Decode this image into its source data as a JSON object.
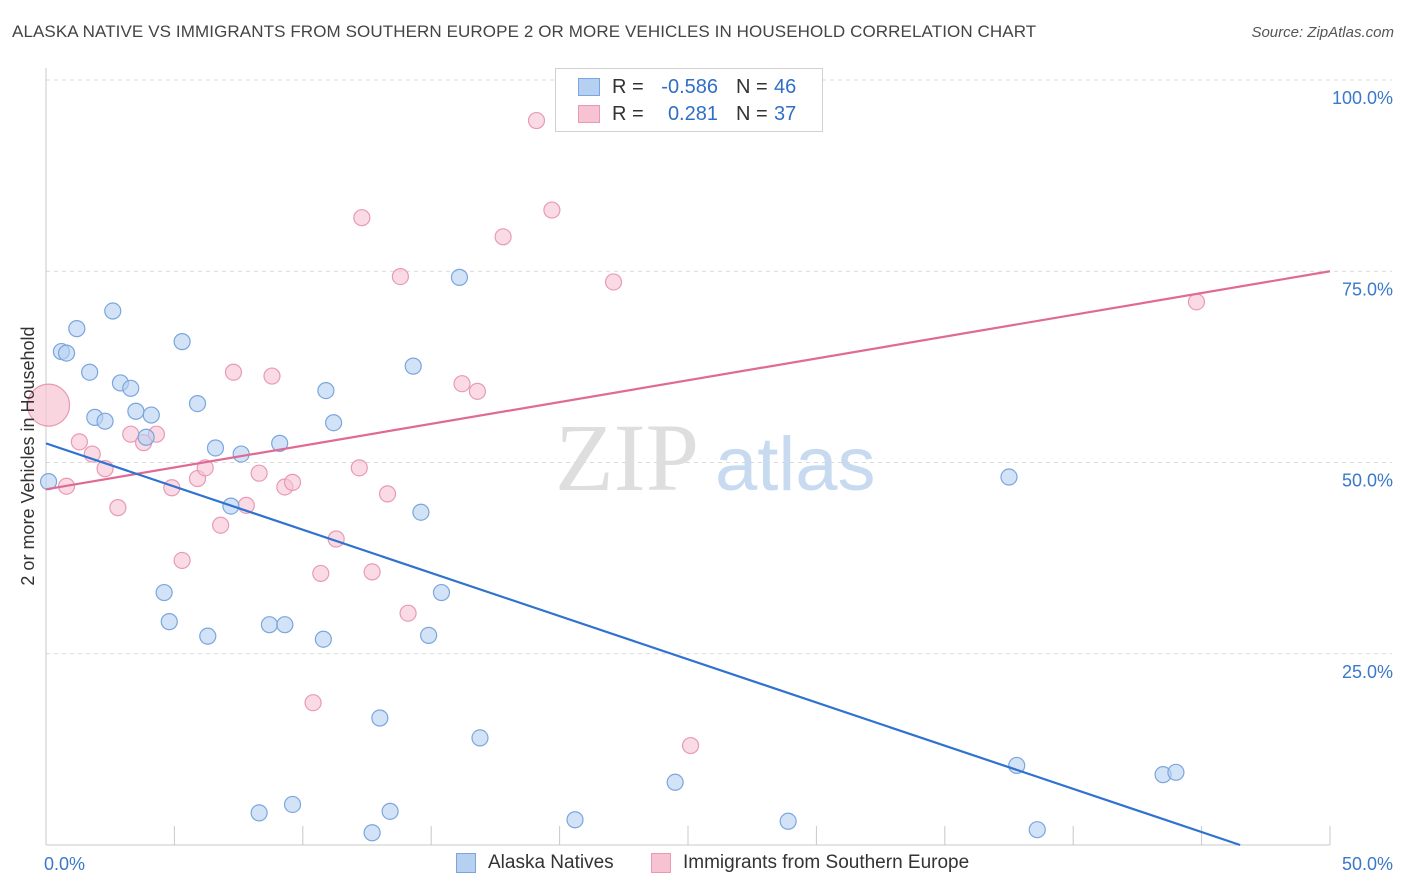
{
  "title": "ALASKA NATIVE VS IMMIGRANTS FROM SOUTHERN EUROPE 2 OR MORE VEHICLES IN HOUSEHOLD CORRELATION CHART",
  "source": "Source: ZipAtlas.com",
  "watermark": {
    "zip": "ZIP",
    "atlas": "atlas"
  },
  "legend_top": {
    "rows": [
      {
        "r_label": "R =",
        "r_value": "-0.586",
        "n_label": "N =",
        "n_value": "46"
      },
      {
        "r_label": "R =",
        "r_value": "0.281",
        "n_label": "N =",
        "n_value": "37"
      }
    ]
  },
  "legend_bottom": [
    "Alaska Natives",
    "Immigrants from Southern Europe"
  ],
  "colors": {
    "blue_fill": "#b6d0f2",
    "blue_stroke": "#7aa6dd",
    "blue_line": "#2f72d0",
    "pink_fill": "#f7c3d3",
    "pink_stroke": "#e89ab4",
    "pink_line": "#e06a93",
    "axis_text": "#3a78c9",
    "grid": "#d9d9d9"
  },
  "chart_data": {
    "type": "scatter",
    "title": "ALASKA NATIVE VS IMMIGRANTS FROM SOUTHERN EUROPE 2 OR MORE VEHICLES IN HOUSEHOLD CORRELATION CHART",
    "xlabel": "",
    "ylabel": "2 or more Vehicles in Household",
    "xlim": [
      0,
      50
    ],
    "ylim": [
      0,
      100
    ],
    "x_tick_labels": [
      "0.0%",
      "50.0%"
    ],
    "y_tick_labels": [
      "100.0%",
      "75.0%",
      "50.0%",
      "25.0%"
    ],
    "y_ticks": [
      100,
      75,
      50,
      25
    ],
    "grid": true,
    "series": [
      {
        "name": "Alaska Natives",
        "r": -0.586,
        "n": 46,
        "trend": {
          "x": [
            0,
            46.5
          ],
          "y": [
            52.5,
            0
          ]
        },
        "points": [
          {
            "x": 0.1,
            "y": 47.5
          },
          {
            "x": 0.6,
            "y": 64.5
          },
          {
            "x": 0.8,
            "y": 64.3
          },
          {
            "x": 1.2,
            "y": 67.5
          },
          {
            "x": 1.7,
            "y": 61.8
          },
          {
            "x": 1.9,
            "y": 55.9
          },
          {
            "x": 2.3,
            "y": 55.4
          },
          {
            "x": 2.6,
            "y": 69.8
          },
          {
            "x": 2.9,
            "y": 60.4
          },
          {
            "x": 3.3,
            "y": 59.7
          },
          {
            "x": 3.5,
            "y": 56.7
          },
          {
            "x": 3.9,
            "y": 53.3
          },
          {
            "x": 4.1,
            "y": 56.2
          },
          {
            "x": 4.6,
            "y": 33.0
          },
          {
            "x": 4.8,
            "y": 29.2
          },
          {
            "x": 5.3,
            "y": 65.8
          },
          {
            "x": 5.9,
            "y": 57.7
          },
          {
            "x": 6.3,
            "y": 27.3
          },
          {
            "x": 6.6,
            "y": 51.9
          },
          {
            "x": 7.2,
            "y": 44.3
          },
          {
            "x": 7.6,
            "y": 51.1
          },
          {
            "x": 8.3,
            "y": 4.2
          },
          {
            "x": 8.7,
            "y": 28.8
          },
          {
            "x": 9.1,
            "y": 52.5
          },
          {
            "x": 9.3,
            "y": 28.8
          },
          {
            "x": 9.6,
            "y": 5.3
          },
          {
            "x": 10.8,
            "y": 26.9
          },
          {
            "x": 10.9,
            "y": 59.4
          },
          {
            "x": 11.2,
            "y": 55.2
          },
          {
            "x": 12.7,
            "y": 1.6
          },
          {
            "x": 13.0,
            "y": 16.6
          },
          {
            "x": 13.4,
            "y": 4.4
          },
          {
            "x": 14.3,
            "y": 62.6
          },
          {
            "x": 14.6,
            "y": 43.5
          },
          {
            "x": 14.9,
            "y": 27.4
          },
          {
            "x": 15.4,
            "y": 33.0
          },
          {
            "x": 16.1,
            "y": 74.2
          },
          {
            "x": 16.9,
            "y": 14.0
          },
          {
            "x": 20.6,
            "y": 3.3
          },
          {
            "x": 24.5,
            "y": 8.2
          },
          {
            "x": 28.9,
            "y": 3.1
          },
          {
            "x": 37.5,
            "y": 48.1
          },
          {
            "x": 37.8,
            "y": 10.4
          },
          {
            "x": 38.6,
            "y": 2.0
          },
          {
            "x": 43.5,
            "y": 9.2
          },
          {
            "x": 44.0,
            "y": 9.5
          }
        ]
      },
      {
        "name": "Immigrants from Southern Europe",
        "r": 0.281,
        "n": 37,
        "trend": {
          "x": [
            0,
            50
          ],
          "y": [
            46.5,
            75.0
          ]
        },
        "points": [
          {
            "x": 0.1,
            "y": 57.5,
            "big": true
          },
          {
            "x": 0.8,
            "y": 46.9
          },
          {
            "x": 1.3,
            "y": 52.7
          },
          {
            "x": 1.8,
            "y": 51.1
          },
          {
            "x": 2.3,
            "y": 49.2
          },
          {
            "x": 2.8,
            "y": 44.1
          },
          {
            "x": 3.3,
            "y": 53.7
          },
          {
            "x": 3.8,
            "y": 52.6
          },
          {
            "x": 4.3,
            "y": 53.7
          },
          {
            "x": 4.9,
            "y": 46.7
          },
          {
            "x": 5.3,
            "y": 37.2
          },
          {
            "x": 5.9,
            "y": 47.9
          },
          {
            "x": 6.2,
            "y": 49.3
          },
          {
            "x": 6.8,
            "y": 41.8
          },
          {
            "x": 7.3,
            "y": 61.8
          },
          {
            "x": 7.8,
            "y": 44.4
          },
          {
            "x": 8.3,
            "y": 48.6
          },
          {
            "x": 8.8,
            "y": 61.3
          },
          {
            "x": 9.3,
            "y": 46.8
          },
          {
            "x": 9.6,
            "y": 47.4
          },
          {
            "x": 10.4,
            "y": 18.6
          },
          {
            "x": 10.7,
            "y": 35.5
          },
          {
            "x": 11.3,
            "y": 40.0
          },
          {
            "x": 12.2,
            "y": 49.3
          },
          {
            "x": 12.3,
            "y": 82.0
          },
          {
            "x": 12.7,
            "y": 35.7
          },
          {
            "x": 13.3,
            "y": 45.9
          },
          {
            "x": 13.8,
            "y": 74.3
          },
          {
            "x": 14.1,
            "y": 30.3
          },
          {
            "x": 16.2,
            "y": 60.3
          },
          {
            "x": 16.8,
            "y": 59.3
          },
          {
            "x": 17.8,
            "y": 79.5
          },
          {
            "x": 19.1,
            "y": 94.7
          },
          {
            "x": 19.7,
            "y": 83.0
          },
          {
            "x": 22.1,
            "y": 73.6
          },
          {
            "x": 25.1,
            "y": 13.0
          },
          {
            "x": 44.8,
            "y": 71.0
          }
        ]
      }
    ]
  }
}
